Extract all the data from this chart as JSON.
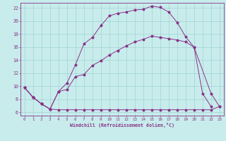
{
  "xlabel": "Windchill (Refroidissement éolien,°C)",
  "background_color": "#c8ecec",
  "line_color": "#883388",
  "xlim": [
    -0.5,
    23.5
  ],
  "ylim": [
    5.5,
    22.8
  ],
  "xticks": [
    0,
    1,
    2,
    3,
    4,
    5,
    6,
    7,
    8,
    9,
    10,
    11,
    12,
    13,
    14,
    15,
    16,
    17,
    18,
    19,
    20,
    21,
    22,
    23
  ],
  "yticks": [
    6,
    8,
    10,
    12,
    14,
    16,
    18,
    20,
    22
  ],
  "line1_x": [
    0,
    1,
    2,
    3,
    4,
    5,
    6,
    7,
    8,
    9,
    10,
    11,
    12,
    13,
    14,
    15,
    16,
    17,
    18,
    19,
    20,
    21,
    22,
    23
  ],
  "line1_y": [
    9.8,
    8.3,
    7.3,
    6.5,
    6.4,
    6.4,
    6.4,
    6.4,
    6.4,
    6.4,
    6.4,
    6.4,
    6.4,
    6.4,
    6.4,
    6.4,
    6.4,
    6.4,
    6.4,
    6.4,
    6.4,
    6.4,
    6.4,
    6.9
  ],
  "line2_x": [
    0,
    1,
    2,
    3,
    4,
    5,
    6,
    7,
    8,
    9,
    10,
    11,
    12,
    13,
    14,
    15,
    16,
    17,
    18,
    19,
    20,
    22,
    23
  ],
  "line2_y": [
    9.8,
    8.3,
    7.3,
    6.5,
    9.2,
    9.5,
    11.5,
    11.8,
    13.2,
    13.9,
    14.8,
    15.5,
    16.2,
    16.8,
    17.2,
    17.7,
    17.5,
    17.3,
    17.1,
    16.8,
    16.0,
    8.9,
    6.9
  ],
  "line3_x": [
    0,
    1,
    2,
    3,
    4,
    5,
    6,
    7,
    8,
    9,
    10,
    11,
    12,
    13,
    14,
    15,
    16,
    17,
    18,
    19,
    20,
    21,
    22
  ],
  "line3_y": [
    9.8,
    8.3,
    7.3,
    6.5,
    9.2,
    10.5,
    13.3,
    16.5,
    17.5,
    19.3,
    20.8,
    21.2,
    21.4,
    21.7,
    21.8,
    22.3,
    22.1,
    21.4,
    19.8,
    17.6,
    16.0,
    8.9,
    6.9
  ]
}
